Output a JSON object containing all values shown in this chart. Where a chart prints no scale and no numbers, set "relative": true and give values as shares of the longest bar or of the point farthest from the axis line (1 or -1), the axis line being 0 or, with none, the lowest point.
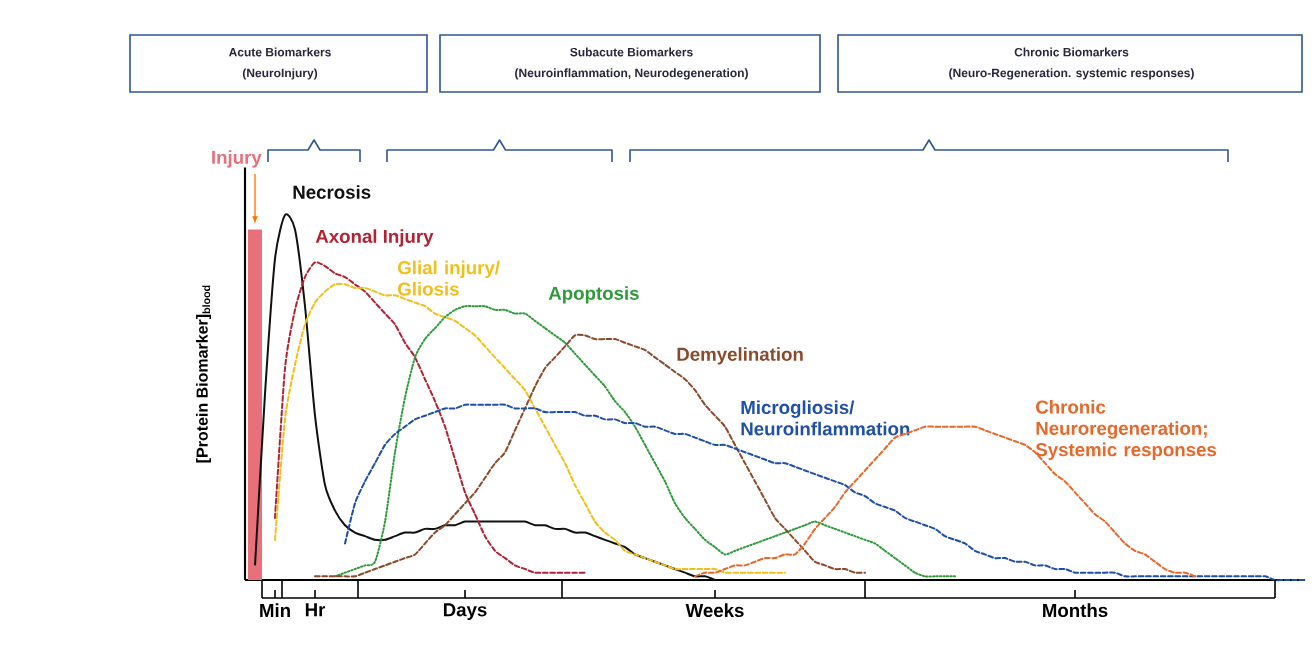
{
  "chart_data": {
    "type": "line",
    "relative": true,
    "ylabel": "[Protein Biomarker]$_{blood}$",
    "categories": [
      null,
      null,
      null,
      "Min",
      null,
      null,
      null,
      "Hr",
      null,
      null,
      null,
      null,
      null,
      null,
      null,
      null,
      null,
      null,
      null,
      null,
      null,
      null,
      "Days",
      null,
      null,
      null,
      null,
      null,
      null,
      null,
      null,
      null,
      null,
      null,
      null,
      null,
      null,
      null,
      null,
      null,
      null,
      null,
      null,
      null,
      null,
      null,
      null,
      "Weeks",
      null,
      null,
      null,
      null,
      null,
      null,
      null,
      null,
      null,
      null,
      null,
      null,
      null,
      null,
      null,
      null,
      null,
      null,
      null,
      null,
      null,
      null,
      null,
      null,
      null,
      null,
      null,
      null,
      null,
      null,
      null,
      null,
      null,
      null,
      null,
      "Months",
      null,
      null,
      null,
      null,
      null,
      null,
      null,
      null,
      null,
      null,
      null,
      null,
      null,
      null,
      null,
      null,
      null,
      null,
      null,
      null,
      null,
      null,
      null
    ],
    "annotations": [
      "Acute Biomarkers",
      "(NeuroInjury)",
      "Subacute Biomarkers",
      "(Neuroinflammation, Neurodegeneration)",
      "Chronic Biomarkers",
      "(Neuro-Regeneration. systemic responses)"
    ],
    "series": [
      {
        "name": "Injury",
        "type": "bar",
        "color": "#e8707a",
        "values": [
          null,
          0.96,
          null,
          null,
          null,
          null,
          null,
          null,
          null,
          null,
          null,
          null,
          null,
          null,
          null,
          null,
          null,
          null,
          null,
          null,
          null,
          null,
          null,
          null,
          null,
          null,
          null,
          null,
          null,
          null,
          null,
          null,
          null,
          null,
          null,
          null,
          null,
          null,
          null,
          null,
          null,
          null,
          null,
          null,
          null,
          null,
          null,
          null,
          null,
          null,
          null,
          null,
          null,
          null,
          null,
          null,
          null,
          null,
          null,
          null,
          null,
          null,
          null,
          null,
          null,
          null,
          null,
          null,
          null,
          null,
          null,
          null,
          null,
          null,
          null,
          null,
          null,
          null,
          null,
          null,
          null,
          null,
          null,
          null,
          null,
          null,
          null,
          null,
          null,
          null,
          null,
          null,
          null,
          null,
          null,
          null,
          null,
          null,
          null,
          null,
          null,
          null,
          null,
          null,
          null,
          null,
          null
        ]
      },
      {
        "name": "Necrosis",
        "color": "#111111",
        "line_style": "solid",
        "values": [
          null,
          0.04,
          0.51,
          0.88,
          1.0,
          0.96,
          0.75,
          0.45,
          0.26,
          0.19,
          0.15,
          0.13,
          0.12,
          0.11,
          0.11,
          0.12,
          0.13,
          0.13,
          0.14,
          0.14,
          0.15,
          0.15,
          0.16,
          0.16,
          0.16,
          0.16,
          0.16,
          0.16,
          0.16,
          0.15,
          0.15,
          0.14,
          0.14,
          0.13,
          0.13,
          0.12,
          0.11,
          0.1,
          0.09,
          0.07,
          0.06,
          0.05,
          0.04,
          0.03,
          0.02,
          0.01,
          0.01,
          0,
          null,
          null,
          null,
          null,
          null,
          null,
          null,
          null,
          null,
          null,
          null,
          null,
          null,
          null,
          null,
          null,
          null,
          null,
          null,
          null,
          null,
          null,
          null,
          null,
          null,
          null,
          null,
          null,
          null,
          null,
          null,
          null,
          null,
          null,
          null,
          null,
          null,
          null,
          null,
          null,
          null,
          null,
          null,
          null,
          null,
          null,
          null,
          null,
          null,
          null,
          null,
          null,
          null,
          null,
          null,
          null,
          null,
          null,
          null
        ]
      },
      {
        "name": "Axonal Injury",
        "color": "#b22234",
        "line_style": "dashed",
        "values": [
          null,
          null,
          null,
          0.17,
          0.58,
          0.74,
          0.83,
          0.87,
          0.86,
          0.84,
          0.83,
          0.81,
          0.79,
          0.76,
          0.73,
          0.7,
          0.65,
          0.61,
          0.55,
          0.49,
          0.42,
          0.33,
          0.24,
          0.18,
          0.12,
          0.08,
          0.06,
          0.04,
          0.03,
          0.02,
          0.02,
          0.02,
          0.02,
          0.02,
          0.02,
          null,
          null,
          null,
          null,
          null,
          null,
          null,
          null,
          null,
          null,
          null,
          null,
          null,
          null,
          null,
          null,
          null,
          null,
          null,
          null,
          null,
          null,
          null,
          null,
          null,
          null,
          null,
          null,
          null,
          null,
          null,
          null,
          null,
          null,
          null,
          null,
          null,
          null,
          null,
          null,
          null,
          null,
          null,
          null,
          null,
          null,
          null,
          null,
          null,
          null,
          null,
          null,
          null,
          null,
          null,
          null,
          null,
          null,
          null,
          null,
          null,
          null,
          null,
          null,
          null,
          null,
          null,
          null,
          null,
          null,
          null,
          null
        ]
      },
      {
        "name": "Glial injury/ Gliosis",
        "color": "#f2bf1a",
        "line_style": "dashed",
        "values": [
          null,
          null,
          null,
          0.11,
          0.44,
          0.59,
          0.7,
          0.76,
          0.79,
          0.81,
          0.81,
          0.8,
          0.8,
          0.79,
          0.78,
          0.78,
          0.77,
          0.76,
          0.75,
          0.73,
          0.72,
          0.71,
          0.69,
          0.67,
          0.64,
          0.61,
          0.58,
          0.55,
          0.52,
          0.47,
          0.42,
          0.37,
          0.32,
          0.26,
          0.21,
          0.16,
          0.13,
          0.11,
          0.08,
          0.07,
          0.06,
          0.05,
          0.04,
          0.03,
          0.03,
          0.03,
          0.03,
          0.03,
          0.02,
          0.02,
          0.02,
          0.02,
          0.02,
          0.02,
          0.02,
          null,
          null,
          null,
          null,
          null,
          null,
          null,
          null,
          null,
          null,
          null,
          null,
          null,
          null,
          null,
          null,
          null,
          null,
          null,
          null,
          null,
          null,
          null,
          null,
          null,
          null,
          null,
          null,
          null,
          null,
          null,
          null,
          null,
          null,
          null,
          null,
          null,
          null,
          null,
          null,
          null,
          null,
          null,
          null,
          null,
          null,
          null,
          null,
          null,
          null,
          null,
          null
        ]
      },
      {
        "name": "Apoptosis",
        "color": "#2e9a3a",
        "line_style": "dotted",
        "values": [
          null,
          null,
          null,
          null,
          null,
          null,
          null,
          null,
          null,
          0.01,
          0.02,
          0.03,
          0.04,
          0.05,
          0.16,
          0.35,
          0.5,
          0.61,
          0.66,
          0.69,
          0.72,
          0.74,
          0.75,
          0.75,
          0.75,
          0.74,
          0.74,
          0.73,
          0.73,
          0.71,
          0.69,
          0.67,
          0.65,
          0.62,
          0.59,
          0.56,
          0.53,
          0.49,
          0.46,
          0.42,
          0.37,
          0.32,
          0.27,
          0.21,
          0.17,
          0.14,
          0.11,
          0.09,
          0.07,
          0.08,
          0.09,
          0.1,
          0.11,
          0.12,
          0.13,
          0.14,
          0.15,
          0.16,
          0.15,
          0.14,
          0.13,
          0.12,
          0.11,
          0.1,
          0.08,
          0.06,
          0.04,
          0.02,
          0.01,
          0.01,
          0.01,
          0.01,
          null,
          null,
          null,
          null,
          null,
          null,
          null,
          null,
          null,
          null,
          null,
          null,
          null,
          null,
          null,
          null,
          null,
          null,
          null,
          null,
          null,
          null,
          null,
          null,
          null,
          null,
          null,
          null,
          null,
          null,
          null,
          null,
          null,
          null,
          null
        ]
      },
      {
        "name": "Demyelination",
        "color": "#8b4a2b",
        "line_style": "dashed",
        "values": [
          null,
          null,
          null,
          null,
          null,
          null,
          null,
          0.01,
          0.01,
          0.01,
          0.01,
          0.01,
          0.02,
          0.03,
          0.04,
          0.05,
          0.06,
          0.07,
          0.1,
          0.13,
          0.15,
          0.18,
          0.21,
          0.24,
          0.28,
          0.32,
          0.35,
          0.41,
          0.47,
          0.53,
          0.58,
          0.61,
          0.64,
          0.67,
          0.67,
          0.66,
          0.66,
          0.66,
          0.65,
          0.64,
          0.63,
          0.61,
          0.59,
          0.57,
          0.55,
          0.52,
          0.48,
          0.45,
          0.42,
          0.37,
          0.32,
          0.27,
          0.22,
          0.17,
          0.14,
          0.11,
          0.08,
          0.05,
          0.04,
          0.03,
          0.03,
          0.02,
          0.02,
          null,
          null,
          null,
          null,
          null,
          null,
          null,
          null,
          null,
          null,
          null,
          null,
          null,
          null,
          null,
          null,
          null,
          null,
          null,
          null,
          null,
          null,
          null,
          null,
          null,
          null,
          null,
          null,
          null,
          null,
          null,
          null,
          null,
          null,
          null,
          null,
          null,
          null,
          null,
          null,
          null,
          null,
          null,
          null
        ]
      },
      {
        "name": "Microgliosis/ Neuroinflammation",
        "color": "#1f4fa8",
        "line_style": "dashed",
        "values": [
          null,
          null,
          null,
          null,
          null,
          null,
          null,
          null,
          null,
          null,
          0.1,
          0.21,
          0.27,
          0.32,
          0.37,
          0.4,
          0.42,
          0.44,
          0.45,
          0.46,
          0.47,
          0.47,
          0.48,
          0.48,
          0.48,
          0.48,
          0.48,
          0.47,
          0.47,
          0.47,
          0.46,
          0.46,
          0.46,
          0.46,
          0.45,
          0.45,
          0.44,
          0.44,
          0.43,
          0.43,
          0.42,
          0.42,
          0.41,
          0.4,
          0.4,
          0.39,
          0.38,
          0.37,
          0.37,
          0.36,
          0.35,
          0.34,
          0.33,
          0.32,
          0.32,
          0.31,
          0.3,
          0.29,
          0.28,
          0.27,
          0.26,
          0.24,
          0.23,
          0.21,
          0.2,
          0.19,
          0.17,
          0.16,
          0.15,
          0.14,
          0.12,
          0.11,
          0.1,
          0.08,
          0.07,
          0.06,
          0.06,
          0.05,
          0.05,
          0.04,
          0.04,
          0.03,
          0.03,
          0.02,
          0.02,
          0.02,
          0.02,
          0.02,
          0.01,
          0.01,
          0.01,
          0.01,
          0.01,
          0.01,
          0.01,
          0.01,
          0.01,
          0.01,
          0.01,
          0.01,
          0.01,
          0.01,
          0.01,
          0,
          0,
          0,
          0
        ]
      },
      {
        "name": "Chronic Neuroregeneration; Systemic responses",
        "color": "#e8672a",
        "line_style": "dashed",
        "values": [
          null,
          null,
          null,
          null,
          null,
          null,
          null,
          null,
          null,
          null,
          null,
          null,
          null,
          null,
          null,
          null,
          null,
          null,
          null,
          null,
          null,
          null,
          null,
          null,
          null,
          null,
          null,
          null,
          null,
          null,
          null,
          null,
          null,
          null,
          null,
          null,
          null,
          null,
          null,
          null,
          null,
          null,
          null,
          null,
          null,
          0.01,
          0.02,
          0.02,
          0.03,
          0.04,
          0.04,
          0.05,
          0.06,
          0.06,
          0.07,
          0.07,
          0.1,
          0.14,
          0.17,
          0.2,
          0.24,
          0.27,
          0.3,
          0.33,
          0.36,
          0.39,
          0.4,
          0.41,
          0.42,
          0.42,
          0.42,
          0.42,
          0.42,
          0.42,
          0.41,
          0.4,
          0.39,
          0.38,
          0.37,
          0.35,
          0.32,
          0.29,
          0.27,
          0.24,
          0.21,
          0.18,
          0.16,
          0.13,
          0.1,
          0.08,
          0.07,
          0.05,
          0.03,
          0.02,
          0.02,
          0.01,
          null,
          null,
          null,
          null,
          null,
          null,
          null,
          null,
          null,
          null,
          null
        ]
      }
    ]
  }
}
